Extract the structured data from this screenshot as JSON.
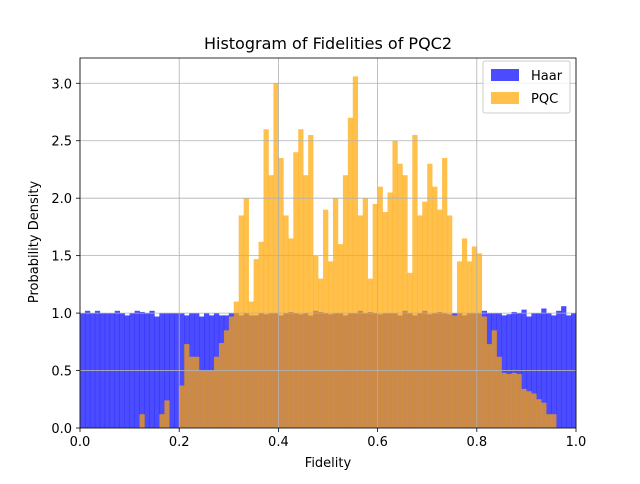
{
  "chart_data": {
    "type": "histogram",
    "title": "Histogram of Fidelities of PQC2",
    "xlabel": "Fidelity",
    "ylabel": "Probability Density",
    "xlim": [
      0.0,
      1.0
    ],
    "ylim": [
      0.0,
      3.22
    ],
    "xticks": [
      "0.0",
      "0.2",
      "0.4",
      "0.6",
      "0.8",
      "1.0"
    ],
    "yticks": [
      "0.0",
      "0.5",
      "1.0",
      "1.5",
      "2.0",
      "2.5",
      "3.0"
    ],
    "grid": true,
    "legend_position": "upper right",
    "colors": {
      "haar": "#0000ff",
      "pqc": "#ffa500",
      "overlap": "#c8884a"
    },
    "series": [
      {
        "name": "Haar",
        "bin_edges": {
          "start": 0.0,
          "end": 1.0,
          "count": 100
        },
        "densities": [
          1.0,
          1.02,
          1.0,
          1.02,
          1.0,
          1.0,
          1.0,
          1.02,
          1.0,
          0.98,
          1.0,
          1.02,
          1.01,
          1.0,
          1.02,
          0.97,
          1.0,
          1.0,
          1.0,
          1.0,
          1.0,
          0.98,
          1.0,
          1.0,
          0.97,
          1.0,
          0.98,
          1.0,
          0.98,
          0.98,
          1.0,
          1.0,
          0.98,
          1.0,
          0.98,
          0.98,
          1.0,
          0.99,
          1.0,
          1.0,
          0.98,
          1.0,
          1.01,
          1.0,
          0.99,
          1.0,
          0.98,
          1.02,
          1.01,
          1.0,
          0.99,
          1.0,
          1.0,
          0.98,
          1.0,
          1.0,
          1.02,
          1.0,
          1.01,
          1.0,
          0.99,
          1.0,
          1.0,
          1.0,
          0.98,
          1.02,
          1.0,
          0.98,
          1.0,
          1.02,
          0.99,
          1.0,
          1.01,
          1.0,
          0.99,
          1.0,
          1.0,
          0.98,
          1.0,
          1.0,
          1.0,
          1.02,
          1.0,
          1.0,
          1.0,
          0.98,
          0.99,
          1.01,
          1.0,
          1.03,
          0.97,
          1.0,
          1.0,
          1.04,
          1.0,
          0.98,
          1.02,
          1.06,
          0.98,
          1.0
        ]
      },
      {
        "name": "PQC",
        "bin_edges": {
          "start": 0.0,
          "end": 1.0,
          "count": 100
        },
        "densities": [
          0,
          0,
          0,
          0,
          0,
          0,
          0,
          0,
          0,
          0,
          0,
          0,
          0.12,
          0,
          0,
          0,
          0.12,
          0.24,
          0,
          0,
          0.37,
          0.73,
          0.62,
          0.62,
          0.5,
          0.5,
          0.5,
          0.62,
          0.74,
          0.85,
          0.97,
          1.1,
          1.85,
          2.0,
          1.1,
          1.47,
          1.62,
          2.6,
          2.2,
          3.0,
          2.35,
          1.85,
          1.65,
          2.4,
          2.6,
          2.2,
          2.55,
          1.5,
          1.3,
          1.9,
          1.45,
          2.0,
          1.6,
          2.2,
          2.7,
          3.06,
          1.85,
          2.0,
          1.3,
          1.95,
          2.1,
          1.88,
          2.05,
          2.5,
          2.3,
          2.2,
          1.35,
          2.55,
          1.85,
          1.97,
          2.3,
          2.1,
          1.9,
          2.35,
          1.85,
          0.98,
          1.45,
          1.65,
          1.45,
          1.58,
          1.52,
          0.97,
          0.73,
          0.85,
          0.62,
          0.48,
          0.47,
          0.48,
          0.47,
          0.34,
          0.32,
          0.3,
          0.25,
          0.22,
          0.12,
          0.12,
          0,
          0,
          0,
          0
        ]
      }
    ]
  }
}
